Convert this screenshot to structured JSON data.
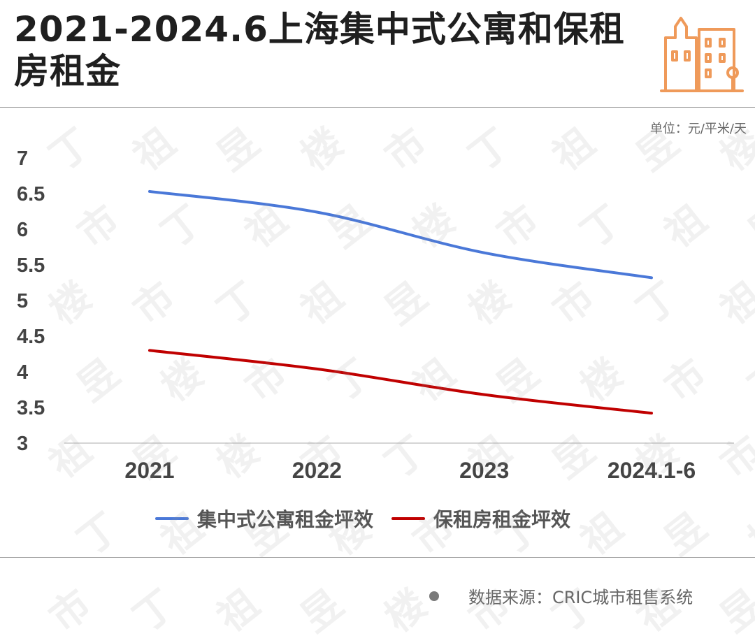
{
  "title": "2021-2024.6上海集中式公寓和保租房租金",
  "unit_label": "单位：元/平米/天",
  "source": "数据来源：CRIC城市租售系统",
  "colors": {
    "series_1": "#4a78d8",
    "series_2": "#c00000",
    "logo": "#ef9a5a"
  },
  "chart_data": {
    "type": "line",
    "categories": [
      "2021",
      "2022",
      "2023",
      "2024.1-6"
    ],
    "ylim": [
      3,
      7
    ],
    "yticks": [
      "7",
      "6.5",
      "6",
      "5.5",
      "5",
      "4.5",
      "4",
      "3.5",
      "3"
    ],
    "series": [
      {
        "name": "集中式公寓租金坪效",
        "values": [
          6.53,
          6.24,
          5.67,
          5.32
        ]
      },
      {
        "name": "保租房租金坪效",
        "values": [
          4.3,
          4.04,
          3.68,
          3.42
        ]
      }
    ],
    "legend": "bottom",
    "grid": false
  },
  "logo_icon": "building-icon"
}
